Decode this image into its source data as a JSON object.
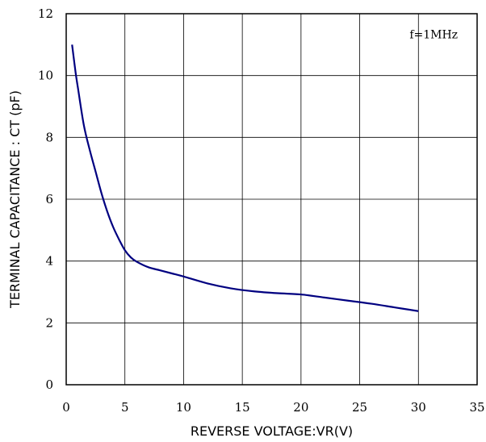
{
  "chart_data": {
    "type": "line",
    "title": "",
    "xlabel": "REVERSE VOLTAGE:VR(V)",
    "ylabel": "TERMINAL CAPACITANCE : CT (pF)",
    "xlim": [
      0,
      35
    ],
    "ylim": [
      0,
      12
    ],
    "xticks": [
      0,
      5,
      10,
      15,
      20,
      25,
      30,
      35
    ],
    "yticks": [
      0,
      2,
      4,
      6,
      8,
      10,
      12
    ],
    "grid": true,
    "legend": "none",
    "annotation": "f=1MHz",
    "line_color": "#000080",
    "series": [
      {
        "x": [
          0.5,
          0.8,
          1,
          1.5,
          2,
          2.5,
          3,
          3.5,
          4,
          4.5,
          5,
          5.5,
          6,
          7,
          8,
          9,
          10,
          12,
          14,
          16,
          18,
          20,
          22,
          24,
          26,
          28,
          30
        ],
        "values": [
          11.0,
          10.1,
          9.6,
          8.4,
          7.6,
          6.9,
          6.2,
          5.6,
          5.1,
          4.7,
          4.35,
          4.12,
          3.98,
          3.8,
          3.7,
          3.6,
          3.5,
          3.28,
          3.12,
          3.02,
          2.96,
          2.92,
          2.82,
          2.72,
          2.62,
          2.5,
          2.38
        ]
      }
    ]
  }
}
